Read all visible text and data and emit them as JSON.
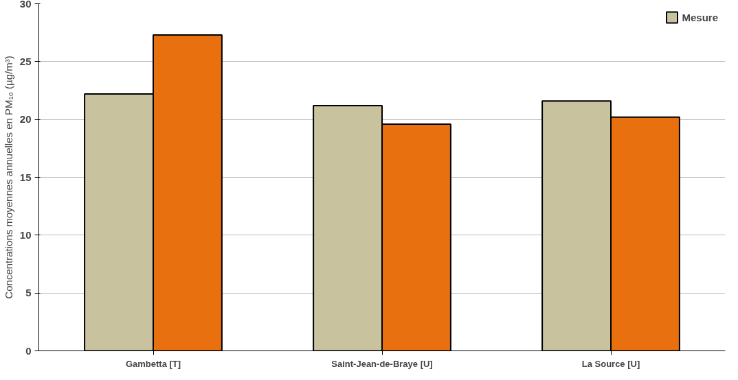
{
  "chart_data": {
    "type": "bar",
    "ylabel": "Concentrations moyennes annuelles en PM₁₀ (µg/m³)",
    "categories": [
      "Gambetta [T]",
      "Saint-Jean-de-Braye [U]",
      "La Source [U]"
    ],
    "series": [
      {
        "name": "Mesure",
        "color": "#c8c29e",
        "values": [
          22.2,
          21.2,
          21.6
        ]
      },
      {
        "color": "#e8700f",
        "values": [
          27.3,
          19.6,
          20.2
        ]
      }
    ],
    "ylim": [
      0,
      30
    ],
    "yticks": [
      0,
      5,
      10,
      15,
      20,
      25,
      30
    ],
    "grid": "y",
    "legend": "top right"
  }
}
